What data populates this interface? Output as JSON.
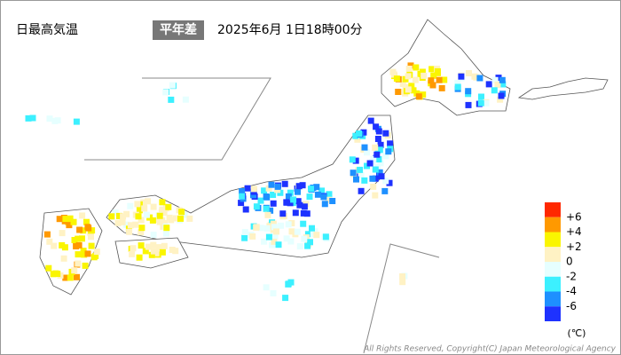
{
  "header": {
    "title": "日最高気温",
    "badge": "平年差",
    "timestamp": "2025年6月 1日18時00分"
  },
  "legend": {
    "colors": [
      "#ff2800",
      "#ff9900",
      "#faf500",
      "#fff2c4",
      "#e6ffff",
      "#3cf0ff",
      "#1e90ff",
      "#1e32ff"
    ],
    "labels": [
      "+6",
      "+4",
      "+2",
      "0",
      "-2",
      "-4",
      "-6"
    ],
    "unit": "(℃)"
  },
  "footer": {
    "copyright": "All Rights Reserved, Copyright(C) Japan Meteorological Agency"
  }
}
